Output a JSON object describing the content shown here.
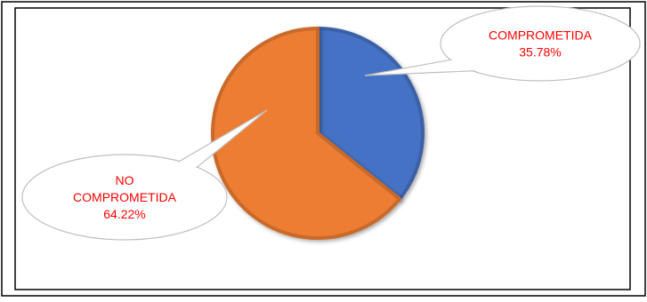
{
  "chart_data": {
    "type": "pie",
    "slices": [
      {
        "label_lines": [
          "COMPROMETIDA",
          "35.78%"
        ],
        "value": 35.78,
        "color": "#4472C4"
      },
      {
        "label_lines": [
          "NO",
          "COMPROMETIDA",
          "64.22%"
        ],
        "value": 64.22,
        "color": "#ED7D31"
      }
    ],
    "title": "",
    "legend": "none",
    "label_color": "#FF0000",
    "callout_fill": "#FFFFFF",
    "callout_stroke": "#BFBFBF"
  }
}
